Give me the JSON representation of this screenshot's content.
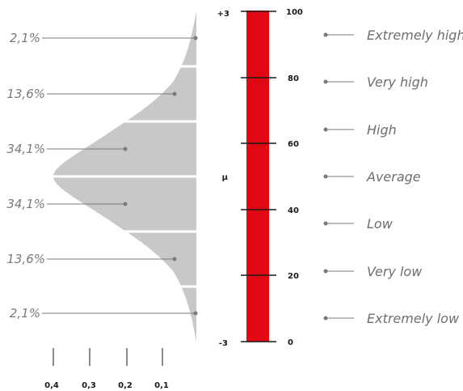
{
  "chart_data": {
    "type": "area",
    "title": "",
    "xlabel": "",
    "ylabel": "",
    "density_axis_ticks": [
      "0,4",
      "0,3",
      "0,2",
      "0,1"
    ],
    "bands": [
      {
        "percent": "2,1%"
      },
      {
        "percent": "13,6%"
      },
      {
        "percent": "34,1%"
      },
      {
        "percent": "34,1%"
      },
      {
        "percent": "13,6%"
      },
      {
        "percent": "2,1%"
      }
    ],
    "sigma_scale": {
      "top": "+3",
      "center": "μ",
      "bottom": "-3"
    },
    "score_scale": {
      "ticks": [
        "100",
        "80",
        "60",
        "40",
        "20",
        "0"
      ],
      "range": [
        0,
        100
      ]
    },
    "categories": [
      "Extremely high",
      "Very high",
      "High",
      "Average",
      "Low",
      "Very low",
      "Extremely low"
    ]
  },
  "colors": {
    "curve_fill": "#c8c8c7",
    "bar_fill": "#e30613",
    "leader_line": "#7a7a7a",
    "text_gray": "#6e6e6e",
    "tick_text": "#1a1a1a"
  }
}
